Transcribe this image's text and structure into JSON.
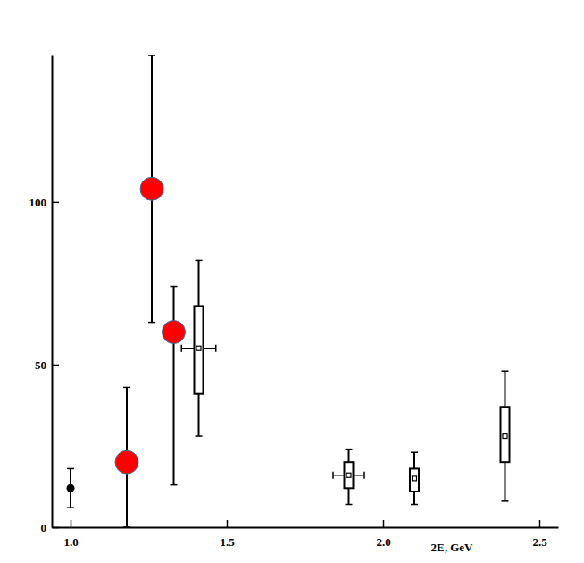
{
  "chart_data": {
    "type": "scatter",
    "x_label": "2E, GeV",
    "xlim": [
      0.94,
      2.56
    ],
    "xticks": [
      {
        "value": 1,
        "label": "1.0"
      },
      1.5,
      {
        "value": 2,
        "label": "2.0"
      },
      2.5
    ],
    "ylim": [
      0,
      145
    ],
    "yticks": [
      0,
      50,
      100
    ],
    "series": [
      {
        "marker": "circle",
        "colors": [
          "#000000",
          "#ff0000",
          "#ff0000",
          "#ff0000"
        ],
        "x": [
          1.0,
          1.18,
          1.26,
          1.33
        ],
        "values": [
          12,
          20,
          104,
          60
        ],
        "error_plus": [
          6,
          23,
          41,
          14
        ],
        "error_minus": [
          6,
          20,
          41,
          47
        ]
      },
      {
        "marker": "box",
        "color": "#000000",
        "x": [
          1.41,
          1.89,
          2.1,
          2.39
        ],
        "values": [
          55,
          16,
          15,
          28
        ],
        "error_plus": [
          27,
          8,
          8,
          20
        ],
        "error_minus": [
          27,
          9,
          8,
          20
        ],
        "box_high": [
          68,
          20,
          18,
          37
        ],
        "box_low": [
          41,
          12,
          11,
          20
        ],
        "x_error": [
          0.055,
          0.05,
          null,
          null
        ]
      }
    ]
  }
}
